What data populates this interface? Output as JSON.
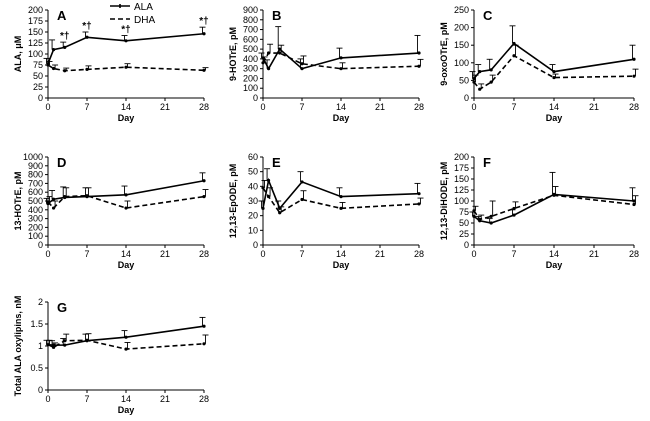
{
  "figure": {
    "series_names": [
      "ALA",
      "DHA"
    ],
    "line_color": "#000000"
  },
  "legend": {
    "location": "top of panel A"
  },
  "chart_data": [
    {
      "type": "line",
      "panel": "A",
      "ylabel": "ALA, μM",
      "xlabel": "Day",
      "x": [
        0,
        1,
        3,
        7,
        14,
        28
      ],
      "xticks": [
        0,
        7,
        14,
        21,
        28
      ],
      "xlim": [
        0,
        28
      ],
      "ylim": [
        0,
        200
      ],
      "yticks": [
        0,
        25,
        50,
        75,
        100,
        125,
        150,
        175,
        200
      ],
      "series": [
        {
          "name": "ALA",
          "values": [
            78,
            110,
            115,
            138,
            130,
            146
          ],
          "errors": [
            12,
            22,
            12,
            12,
            12,
            15
          ]
        },
        {
          "name": "DHA",
          "values": [
            75,
            67,
            62,
            65,
            70,
            63
          ],
          "errors": [
            8,
            8,
            6,
            8,
            8,
            6
          ]
        }
      ],
      "annotations": [
        {
          "x": 3,
          "text": "*†"
        },
        {
          "x": 7,
          "text": "*†"
        },
        {
          "x": 14,
          "text": "*†"
        },
        {
          "x": 28,
          "text": "*†"
        }
      ]
    },
    {
      "type": "line",
      "panel": "B",
      "ylabel": "9-HOTrE, pM",
      "xlabel": "Day",
      "x": [
        0,
        1,
        3,
        7,
        14,
        28
      ],
      "xticks": [
        0,
        7,
        14,
        21,
        28
      ],
      "xlim": [
        0,
        28
      ],
      "ylim": [
        0,
        900
      ],
      "yticks": [
        0,
        100,
        200,
        300,
        400,
        500,
        600,
        700,
        800,
        900
      ],
      "series": [
        {
          "name": "ALA",
          "values": [
            410,
            300,
            500,
            300,
            410,
            460
          ],
          "errors": [
            50,
            90,
            230,
            100,
            100,
            180
          ]
        },
        {
          "name": "DHA",
          "values": [
            360,
            460,
            460,
            350,
            300,
            325
          ],
          "errors": [
            60,
            90,
            80,
            80,
            60,
            70
          ]
        }
      ]
    },
    {
      "type": "line",
      "panel": "C",
      "ylabel": "9-oxoOTrE, pM",
      "xlabel": "Day",
      "x": [
        0,
        1,
        3,
        7,
        14,
        28
      ],
      "xticks": [
        0,
        7,
        14,
        21,
        28
      ],
      "xlim": [
        0,
        28
      ],
      "ylim": [
        0,
        250
      ],
      "yticks": [
        0,
        50,
        100,
        150,
        200,
        250
      ],
      "series": [
        {
          "name": "ALA",
          "values": [
            55,
            75,
            80,
            155,
            75,
            110
          ],
          "errors": [
            20,
            20,
            30,
            50,
            20,
            40
          ]
        },
        {
          "name": "DHA",
          "values": [
            45,
            25,
            45,
            120,
            58,
            62
          ],
          "errors": [
            20,
            15,
            20,
            30,
            10,
            20
          ]
        }
      ]
    },
    {
      "type": "line",
      "panel": "D",
      "ylabel": "13-HOTrE, pM",
      "xlabel": "Day",
      "x": [
        0,
        1,
        3,
        7,
        14,
        28
      ],
      "xticks": [
        0,
        7,
        14,
        21,
        28
      ],
      "xlim": [
        0,
        28
      ],
      "ylim": [
        0,
        1000
      ],
      "yticks": [
        0,
        100,
        200,
        300,
        400,
        500,
        600,
        700,
        800,
        900,
        1000
      ],
      "series": [
        {
          "name": "ALA",
          "values": [
            470,
            520,
            540,
            550,
            570,
            730
          ],
          "errors": [
            60,
            100,
            120,
            100,
            100,
            90
          ]
        },
        {
          "name": "DHA",
          "values": [
            490,
            420,
            550,
            560,
            420,
            550
          ],
          "errors": [
            60,
            80,
            100,
            90,
            80,
            80
          ]
        }
      ]
    },
    {
      "type": "line",
      "panel": "E",
      "ylabel": "12,13-EpODE, pM",
      "xlabel": "Day",
      "x": [
        0,
        1,
        3,
        7,
        14,
        28
      ],
      "xticks": [
        0,
        7,
        14,
        21,
        28
      ],
      "xlim": [
        0,
        28
      ],
      "ylim": [
        0,
        60
      ],
      "yticks": [
        0,
        10,
        20,
        30,
        40,
        50,
        60
      ],
      "series": [
        {
          "name": "ALA",
          "values": [
            25,
            44,
            25,
            43,
            33,
            35
          ],
          "errors": [
            5,
            8,
            5,
            7,
            6,
            7
          ]
        },
        {
          "name": "DHA",
          "values": [
            39,
            33,
            22,
            31,
            25,
            28
          ],
          "errors": [
            5,
            6,
            4,
            6,
            4,
            4
          ]
        }
      ]
    },
    {
      "type": "line",
      "panel": "F",
      "ylabel": "12,13-DiHODE, pM",
      "xlabel": "Day",
      "x": [
        0,
        1,
        3,
        7,
        14,
        28
      ],
      "xticks": [
        0,
        7,
        14,
        21,
        28
      ],
      "xlim": [
        0,
        28
      ],
      "ylim": [
        0,
        200
      ],
      "yticks": [
        0,
        25,
        50,
        75,
        100,
        125,
        150,
        175,
        200
      ],
      "series": [
        {
          "name": "ALA",
          "values": [
            65,
            55,
            50,
            68,
            115,
            100
          ],
          "errors": [
            10,
            10,
            10,
            12,
            50,
            30
          ]
        },
        {
          "name": "DHA",
          "values": [
            78,
            58,
            65,
            83,
            113,
            92
          ],
          "errors": [
            10,
            10,
            35,
            15,
            20,
            20
          ]
        }
      ]
    },
    {
      "type": "line",
      "panel": "G",
      "ylabel": "Total ALA oxylipins, nM",
      "xlabel": "Day",
      "x": [
        0,
        1,
        3,
        7,
        14,
        28
      ],
      "xticks": [
        0,
        7,
        14,
        21,
        28
      ],
      "xlim": [
        0,
        28
      ],
      "ylim": [
        0,
        2
      ],
      "yticks": [
        0,
        0.5,
        1,
        1.5,
        2
      ],
      "series": [
        {
          "name": "ALA",
          "values": [
            1.03,
            1.02,
            1.02,
            1.12,
            1.2,
            1.45
          ],
          "errors": [
            0.1,
            0.1,
            0.15,
            0.15,
            0.15,
            0.2
          ]
        },
        {
          "name": "DHA",
          "values": [
            1.03,
            0.97,
            1.12,
            1.13,
            0.93,
            1.05
          ],
          "errors": [
            0.1,
            0.1,
            0.15,
            0.15,
            0.15,
            0.2
          ]
        }
      ]
    }
  ]
}
